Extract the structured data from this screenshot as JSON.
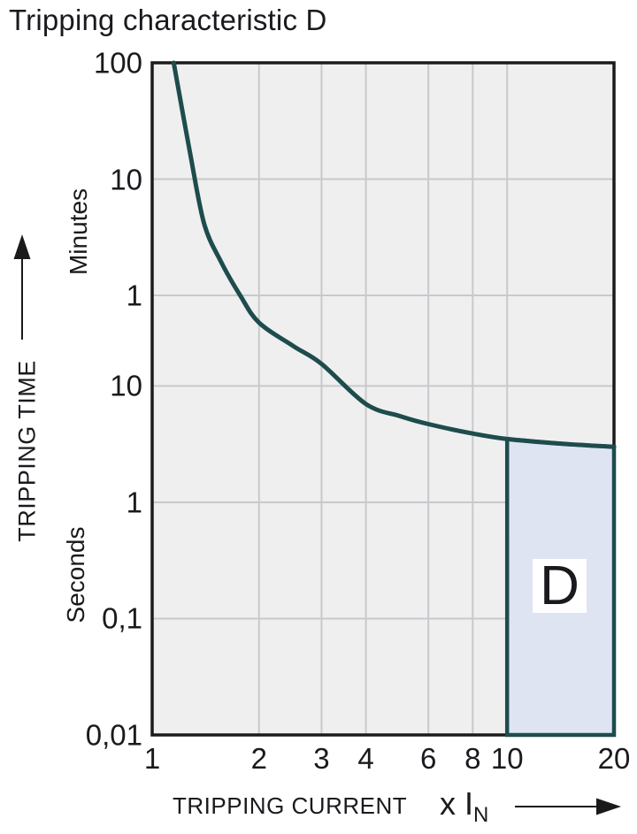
{
  "title": "Tripping characteristic D",
  "chart_data": {
    "type": "line",
    "title": "Tripping characteristic D",
    "grid": true,
    "legend": false,
    "x_axis": {
      "label": "TRIPPING CURRENT",
      "unit_prefix": "x I",
      "unit_sub": "N",
      "scale": "log",
      "min": 1,
      "max": 20,
      "ticks": [
        {
          "label": "1",
          "value": 1
        },
        {
          "label": "2",
          "value": 2
        },
        {
          "label": "3",
          "value": 3
        },
        {
          "label": "4",
          "value": 4
        },
        {
          "label": "6",
          "value": 6
        },
        {
          "label": "8",
          "value": 8
        },
        {
          "label": "10",
          "value": 10
        },
        {
          "label": "20",
          "value": 20
        }
      ]
    },
    "y_axis": {
      "label": "TRIPPING TIME",
      "unit_upper": "Minutes",
      "unit_lower": "Seconds",
      "scale": "log",
      "max_seconds": 6000,
      "min_seconds": 0.01,
      "ticks": [
        {
          "label": "100",
          "seconds": 6000,
          "unit": "minutes"
        },
        {
          "label": "10",
          "seconds": 600,
          "unit": "minutes"
        },
        {
          "label": "1",
          "seconds": 60,
          "unit": "minutes"
        },
        {
          "label": "10",
          "seconds": 10,
          "unit": "seconds"
        },
        {
          "label": "1",
          "seconds": 1,
          "unit": "seconds"
        },
        {
          "label": "0,1",
          "seconds": 0.1,
          "unit": "seconds"
        },
        {
          "label": "0,01",
          "seconds": 0.01,
          "unit": "seconds"
        }
      ]
    },
    "series": [
      {
        "name": "tripping-time-curve",
        "points": [
          [
            1.15,
            6000
          ],
          [
            1.28,
            990
          ],
          [
            1.4,
            250
          ],
          [
            1.56,
            118
          ],
          [
            1.77,
            60
          ],
          [
            2.0,
            35
          ],
          [
            2.5,
            22
          ],
          [
            3.0,
            15.5
          ],
          [
            4.0,
            7.0
          ],
          [
            5.0,
            5.5
          ],
          [
            6.0,
            4.7
          ],
          [
            8.0,
            3.9
          ],
          [
            10,
            3.5
          ],
          [
            14,
            3.2
          ],
          [
            20,
            3.0
          ]
        ]
      }
    ],
    "region": {
      "label": "D",
      "x_start": 10,
      "x_end": 20,
      "bottom_seconds": 0.01
    }
  },
  "colors": {
    "curve": "#1e4c4d",
    "region_fill": "#dfe4f3",
    "region_border": "#1e4c4d",
    "plot_bg": "#efefef",
    "grid": "#c7c9cd",
    "axis": "#1a1a1a",
    "text": "#1a1a1e",
    "region_label_bg": "#ffffff"
  }
}
